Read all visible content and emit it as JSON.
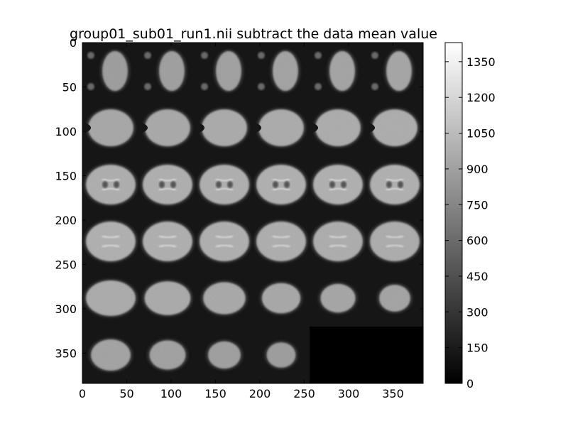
{
  "chart_data": {
    "type": "heatmap",
    "title": "group01_sub01_run1.nii subtract the data mean value",
    "xlabel": "",
    "ylabel": "",
    "x_ticks": [
      0,
      50,
      100,
      150,
      200,
      250,
      300,
      350
    ],
    "y_ticks": [
      0,
      50,
      100,
      150,
      200,
      250,
      300,
      350
    ],
    "xlim": [
      0,
      384
    ],
    "ylim": [
      384,
      0
    ],
    "grid": false,
    "colormap": "gray",
    "colorbar": {
      "range": [
        0,
        1430
      ],
      "ticks": [
        0,
        150,
        300,
        450,
        600,
        750,
        900,
        1050,
        1200,
        1350
      ]
    },
    "mosaic": {
      "rows": 6,
      "cols": 6,
      "tile_size": 64,
      "filled_slices": 34,
      "empty_value": 0
    }
  }
}
